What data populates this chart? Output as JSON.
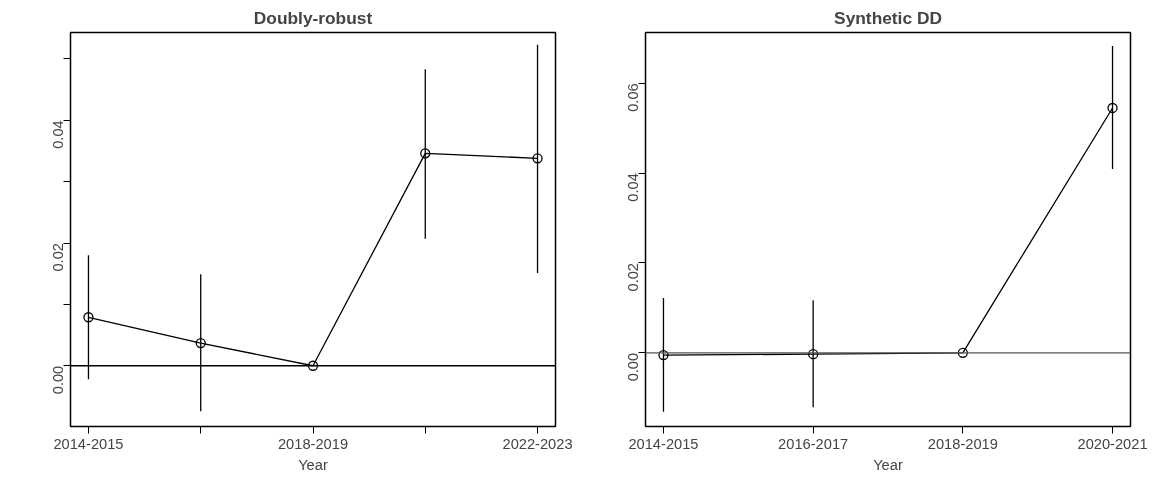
{
  "chart_data": [
    {
      "type": "line",
      "title": "Doubly-robust",
      "xlabel": "Year",
      "categories": [
        "2014-2015",
        null,
        "2018-2019",
        null,
        "2022-2023"
      ],
      "series": [
        {
          "color": "#000000",
          "values": [
            0.0079,
            0.0037,
            0,
            0.0346,
            0.0338
          ],
          "errors": [
            [
              -0.0022,
              0.018
            ],
            [
              -0.0074,
              0.0149
            ],
            null,
            [
              0.0207,
              0.0483
            ],
            [
              0.0151,
              0.0523
            ]
          ]
        }
      ],
      "ylim": [
        -0.0099,
        0.0543
      ],
      "yticks": [
        {
          "value": 0,
          "label": "0.00"
        },
        {
          "value": 0.01,
          "label": null
        },
        {
          "value": 0.02,
          "label": "0.02"
        },
        {
          "value": 0.03,
          "label": null
        },
        {
          "value": 0.04,
          "label": "0.04"
        },
        {
          "value": 0.05,
          "label": null
        }
      ],
      "ref_lines": [
        {
          "axis": "y",
          "value": 0,
          "color": "#000000"
        }
      ],
      "marker": "circle",
      "line_style": "solid",
      "grid": false
    },
    {
      "type": "line",
      "title": "Synthetic DD",
      "xlabel": "Year",
      "categories": [
        "2014-2015",
        "2016-2017",
        "2018-2019",
        "2020-2021"
      ],
      "series": [
        {
          "color": "#000000",
          "values": [
            -0.0005,
            -0.0003,
            0,
            0.0545
          ],
          "errors": [
            [
              -0.0131,
              0.0122
            ],
            [
              -0.0121,
              0.0117
            ],
            null,
            [
              0.0409,
              0.0683
            ]
          ]
        }
      ],
      "ylim": [
        -0.0164,
        0.0713
      ],
      "yticks": [
        {
          "value": 0,
          "label": "0.00"
        },
        {
          "value": 0.02,
          "label": "0.02"
        },
        {
          "value": 0.04,
          "label": "0.04"
        },
        {
          "value": 0.06,
          "label": "0.06"
        }
      ],
      "ref_lines": [
        {
          "axis": "y",
          "value": 0,
          "color": "#555555"
        }
      ],
      "marker": "circle",
      "line_style": "solid",
      "grid": false
    }
  ]
}
